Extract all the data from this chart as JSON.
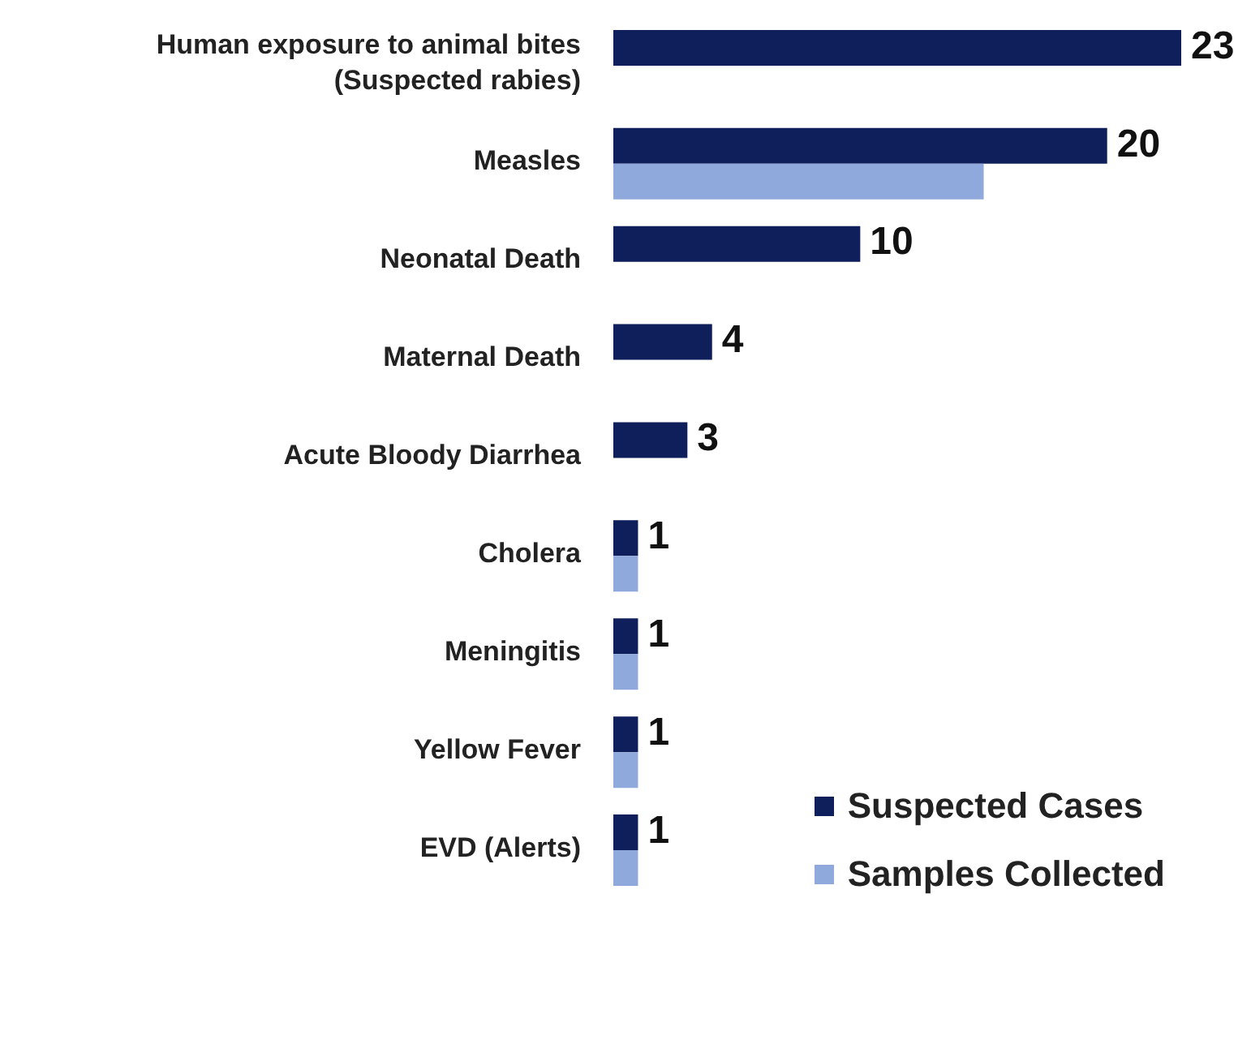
{
  "chart_data": {
    "type": "bar",
    "orientation": "horizontal",
    "categories": [
      "Human exposure to animal bites (Suspected rabies)",
      "Measles",
      "Neonatal Death",
      "Maternal Death",
      "Acute Bloody Diarrhea",
      "Cholera",
      "Meningitis",
      "Yellow Fever",
      "EVD (Alerts)"
    ],
    "series": [
      {
        "name": "Suspected Cases",
        "color": "#0e1f5b",
        "values": [
          23,
          20,
          10,
          4,
          3,
          1,
          1,
          1,
          1
        ],
        "value_labels": [
          "23",
          "20",
          "10",
          "4",
          "3",
          "1",
          "1",
          "1",
          "1"
        ]
      },
      {
        "name": "Samples Collected",
        "color": "#8fa9dc",
        "values": [
          null,
          15,
          null,
          null,
          null,
          1,
          1,
          1,
          1
        ]
      }
    ],
    "tick_labels": "y",
    "legend": "bottom right"
  }
}
